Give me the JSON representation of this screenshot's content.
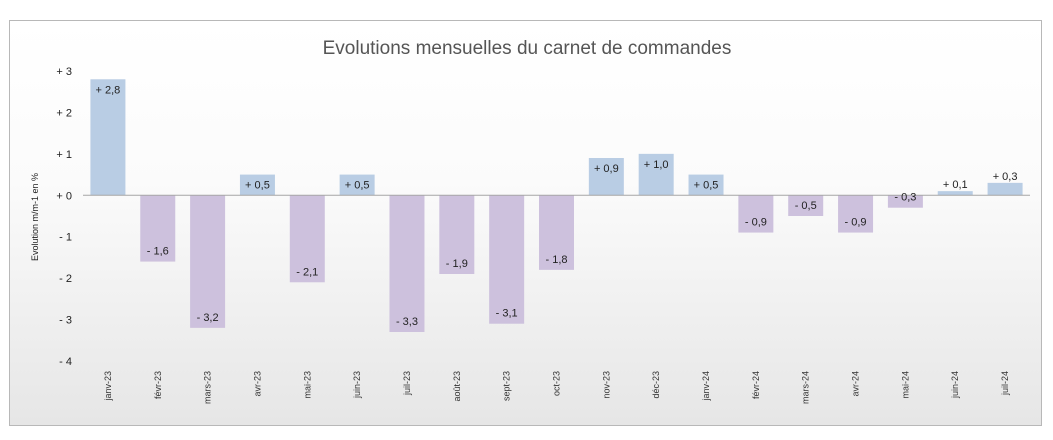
{
  "chart_data": {
    "type": "bar",
    "title": "Evolutions mensuelles du carnet de commandes",
    "xlabel": "",
    "ylabel": "Evolution m/m-1 en %",
    "ylim": [
      -4,
      3
    ],
    "yticks": [
      {
        "value": 3,
        "label": "+ 3"
      },
      {
        "value": 2,
        "label": "+ 2"
      },
      {
        "value": 1,
        "label": "+ 1"
      },
      {
        "value": 0,
        "label": "+ 0"
      },
      {
        "value": -1,
        "label": "- 1"
      },
      {
        "value": -2,
        "label": "- 2"
      },
      {
        "value": -3,
        "label": "- 3"
      },
      {
        "value": -4,
        "label": "- 4"
      }
    ],
    "categories": [
      "janv-23",
      "févr-23",
      "mars-23",
      "avr-23",
      "mai-23",
      "juin-23",
      "juil-23",
      "août-23",
      "sept-23",
      "oct-23",
      "nov-23",
      "déc-23",
      "janv-24",
      "févr-24",
      "mars-24",
      "avr-24",
      "mai-24",
      "juin-24",
      "juil-24"
    ],
    "values": [
      2.8,
      -1.6,
      -3.2,
      0.5,
      -2.1,
      0.5,
      -3.3,
      -1.9,
      -3.1,
      -1.8,
      0.9,
      1.0,
      0.5,
      -0.9,
      -0.5,
      -0.9,
      -0.3,
      0.1,
      0.3
    ],
    "labels": [
      "+ 2,8",
      "- 1,6",
      "- 3,2",
      "+ 0,5",
      "- 2,1",
      "+ 0,5",
      "- 3,3",
      "- 1,9",
      "- 3,1",
      "- 1,8",
      "+ 0,9",
      "+ 1,0",
      "+ 0,5",
      "- 0,9",
      "- 0,5",
      "- 0,9",
      "- 0,3",
      "+ 0,1",
      "+ 0,3"
    ],
    "colors": {
      "positive": "#b9cde4",
      "negative": "#cdc1dd",
      "axis": "#a6a6a6"
    },
    "grid": false,
    "legend": "none"
  }
}
